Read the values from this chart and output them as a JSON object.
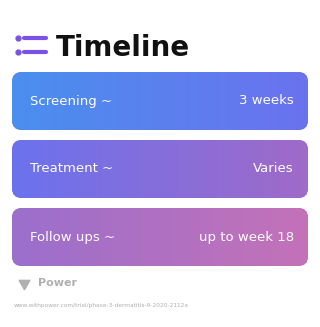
{
  "title": "Timeline",
  "background_color": "#ffffff",
  "title_fontsize": 20,
  "title_fontweight": "bold",
  "title_color": "#111111",
  "icon_color": "#7B52E8",
  "rows": [
    {
      "label": "Screening ~",
      "value": "3 weeks",
      "gradient_left": "#4A8FEF",
      "gradient_right": "#6B72EE"
    },
    {
      "label": "Treatment ~",
      "value": "Varies",
      "gradient_left": "#6B72EE",
      "gradient_right": "#A06AC8"
    },
    {
      "label": "Follow ups ~",
      "value": "up to week 18",
      "gradient_left": "#9B6FCC",
      "gradient_right": "#C472B8"
    }
  ],
  "footer_logo_text": "Power",
  "footer_url": "www.withpower.com/trial/phase-3-dermatitis-9-2020-2112a",
  "footer_color": "#b0b0b0",
  "text_color": "#ffffff",
  "label_fontsize": 9.5,
  "value_fontsize": 9.5
}
